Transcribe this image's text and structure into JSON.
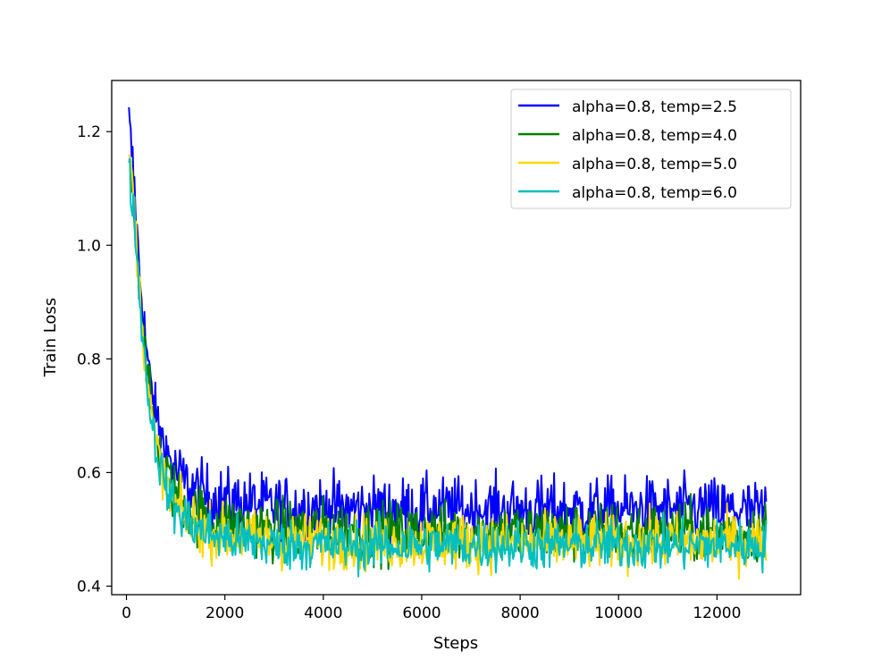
{
  "chart_data": {
    "type": "line",
    "title": "",
    "xlabel": "Steps",
    "ylabel": "Train Loss",
    "xlim": [
      -300,
      13700
    ],
    "ylim": [
      0.385,
      1.29
    ],
    "xticks": [
      0,
      2000,
      4000,
      6000,
      8000,
      10000,
      12000
    ],
    "xtick_labels": [
      "0",
      "2000",
      "4000",
      "6000",
      "8000",
      "10000",
      "12000"
    ],
    "yticks": [
      0.4,
      0.6,
      0.8,
      1.0,
      1.2
    ],
    "ytick_labels": [
      "0.4",
      "0.6",
      "0.8",
      "1.0",
      "1.2"
    ],
    "grid": false,
    "legend_position": "top-right",
    "x": [
      50,
      150,
      250,
      350,
      450,
      600,
      800,
      1000,
      1300,
      1600,
      2000,
      2500,
      3000,
      3500,
      4000,
      5000,
      6000,
      7000,
      8000,
      9000,
      10000,
      11000,
      12000,
      13000
    ],
    "series": [
      {
        "name": "alpha=0.8, temp=2.5",
        "color": "#0000ff",
        "values": [
          1.22,
          1.12,
          0.97,
          0.87,
          0.78,
          0.7,
          0.64,
          0.6,
          0.575,
          0.56,
          0.55,
          0.545,
          0.54,
          0.54,
          0.54,
          0.535,
          0.535,
          0.535,
          0.535,
          0.535,
          0.535,
          0.535,
          0.535,
          0.53
        ],
        "noise": 0.028
      },
      {
        "name": "alpha=0.8, temp=4.0",
        "color": "#008000",
        "values": [
          1.16,
          1.08,
          0.95,
          0.84,
          0.75,
          0.66,
          0.6,
          0.56,
          0.535,
          0.52,
          0.51,
          0.505,
          0.5,
          0.5,
          0.5,
          0.495,
          0.495,
          0.495,
          0.495,
          0.495,
          0.495,
          0.495,
          0.495,
          0.495
        ],
        "noise": 0.026
      },
      {
        "name": "alpha=0.8, temp=5.0",
        "color": "#ffd700",
        "values": [
          1.17,
          1.08,
          0.94,
          0.83,
          0.74,
          0.65,
          0.58,
          0.54,
          0.515,
          0.5,
          0.49,
          0.485,
          0.48,
          0.48,
          0.48,
          0.478,
          0.478,
          0.478,
          0.478,
          0.478,
          0.478,
          0.478,
          0.478,
          0.478
        ],
        "noise": 0.024
      },
      {
        "name": "alpha=0.8, temp=6.0",
        "color": "#00bfbf",
        "values": [
          1.13,
          1.06,
          0.93,
          0.82,
          0.73,
          0.64,
          0.575,
          0.535,
          0.51,
          0.495,
          0.485,
          0.478,
          0.474,
          0.472,
          0.472,
          0.472,
          0.472,
          0.472,
          0.472,
          0.472,
          0.472,
          0.472,
          0.472,
          0.472
        ],
        "noise": 0.022
      }
    ]
  }
}
